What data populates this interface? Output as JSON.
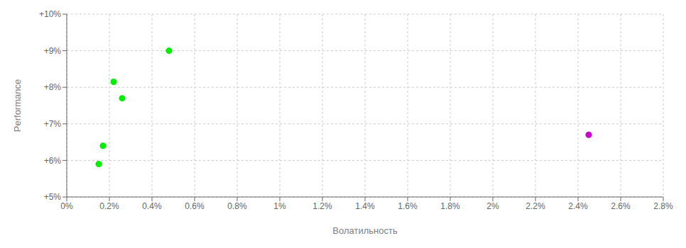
{
  "chart_data": {
    "type": "scatter",
    "xlabel": "Волатильность",
    "ylabel": "Performance",
    "xlim": [
      0.0,
      0.028
    ],
    "ylim": [
      0.05,
      0.1
    ],
    "xticks": [
      {
        "value": 0.0,
        "label": "0%"
      },
      {
        "value": 0.002,
        "label": "0.2%"
      },
      {
        "value": 0.004,
        "label": "0.4%"
      },
      {
        "value": 0.006,
        "label": "0.6%"
      },
      {
        "value": 0.008,
        "label": "0.8%"
      },
      {
        "value": 0.01,
        "label": "1%"
      },
      {
        "value": 0.012,
        "label": "1.2%"
      },
      {
        "value": 0.014,
        "label": "1.4%"
      },
      {
        "value": 0.016,
        "label": "1.6%"
      },
      {
        "value": 0.018,
        "label": "1.8%"
      },
      {
        "value": 0.02,
        "label": "2%"
      },
      {
        "value": 0.022,
        "label": "2.2%"
      },
      {
        "value": 0.024,
        "label": "2.4%"
      },
      {
        "value": 0.026,
        "label": "2.6%"
      },
      {
        "value": 0.028,
        "label": "2.8%"
      }
    ],
    "yticks": [
      {
        "value": 0.05,
        "label": "+5%"
      },
      {
        "value": 0.06,
        "label": "+6%"
      },
      {
        "value": 0.07,
        "label": "+7%"
      },
      {
        "value": 0.08,
        "label": "+8%"
      },
      {
        "value": 0.09,
        "label": "+9%"
      },
      {
        "value": 0.1,
        "label": "+10%"
      }
    ],
    "grid": true,
    "series": [
      {
        "color": "#00ee00",
        "x": [
          0.0048,
          0.0022,
          0.0026,
          0.0017,
          0.0015
        ],
        "values": [
          0.09,
          0.0815,
          0.077,
          0.064,
          0.059
        ]
      },
      {
        "color": "#cc00cc",
        "x": [
          0.0245
        ],
        "values": [
          0.067
        ]
      }
    ]
  }
}
